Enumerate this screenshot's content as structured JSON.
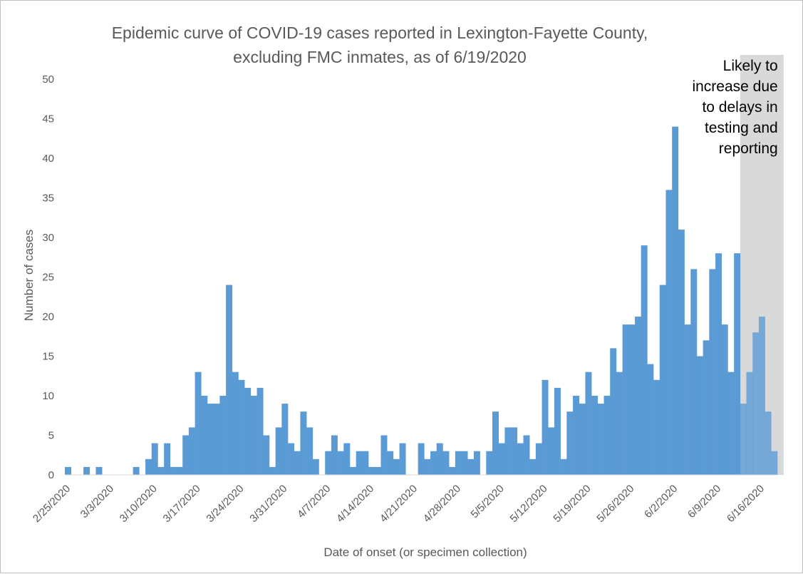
{
  "chart_data": {
    "type": "bar",
    "title": [
      "Epidemic curve of COVID-19 cases reported in Lexington-Fayette County,",
      "excluding FMC inmates, as of 6/19/2020"
    ],
    "xlabel": "Date of onset (or specimen collection)",
    "ylabel": "Number of cases",
    "ylim": [
      0,
      50
    ],
    "yticks": [
      0,
      5,
      10,
      15,
      20,
      25,
      30,
      35,
      40,
      45,
      50
    ],
    "x_start": "2/25/2020",
    "xtick_labels": [
      "2/25/2020",
      "3/3/2020",
      "3/10/2020",
      "3/17/2020",
      "3/24/2020",
      "3/31/2020",
      "4/7/2020",
      "4/14/2020",
      "4/21/2020",
      "4/28/2020",
      "5/5/2020",
      "5/12/2020",
      "5/19/2020",
      "5/26/2020",
      "6/2/2020",
      "6/9/2020",
      "6/16/2020"
    ],
    "bar_color": "#5b9bd5",
    "values": [
      1,
      0,
      0,
      1,
      0,
      1,
      0,
      0,
      0,
      0,
      0,
      1,
      0,
      2,
      4,
      1,
      4,
      1,
      1,
      5,
      6,
      13,
      10,
      9,
      9,
      10,
      24,
      13,
      12,
      11,
      10,
      11,
      5,
      1,
      6,
      9,
      4,
      3,
      8,
      6,
      2,
      0,
      3,
      5,
      3,
      4,
      1,
      3,
      3,
      1,
      1,
      5,
      3,
      2,
      4,
      0,
      0,
      4,
      2,
      3,
      4,
      3,
      1,
      3,
      3,
      2,
      3,
      0,
      3,
      8,
      4,
      6,
      6,
      4,
      5,
      2,
      4,
      12,
      6,
      11,
      2,
      8,
      10,
      9,
      13,
      10,
      9,
      10,
      16,
      13,
      19,
      19,
      20,
      29,
      14,
      12,
      24,
      36,
      44,
      31,
      19,
      26,
      15,
      17,
      26,
      28,
      19,
      13,
      28,
      9,
      13,
      18,
      20,
      8,
      3
    ],
    "shaded_region": {
      "from": "6/13/2020",
      "to": "6/19/2020",
      "color": "#d9d9d9",
      "label": [
        "Likely to",
        "increase due",
        "to delays in",
        "testing and",
        "reporting"
      ]
    }
  }
}
